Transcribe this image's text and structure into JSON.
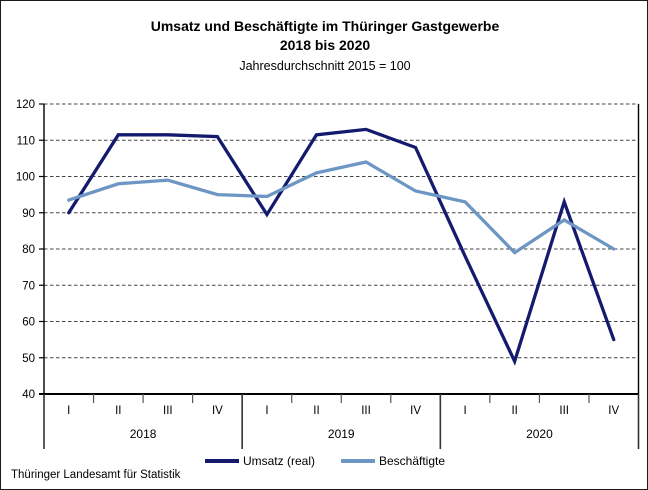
{
  "ui": {
    "title_line1": "Umsatz und Beschäftigte im Thüringer Gastgewerbe",
    "title_line2": "2018 bis 2020",
    "subtitle": "Jahresdurchschnitt 2015 = 100",
    "source": "Thüringer Landesamt für Statistik"
  },
  "chart_data": {
    "type": "line",
    "title": "Umsatz und Beschäftigte im Thüringer Gastgewerbe 2018 bis 2020",
    "subtitle": "Jahresdurchschnitt 2015 = 100",
    "quarter_labels": [
      "I",
      "II",
      "III",
      "IV",
      "I",
      "II",
      "III",
      "IV",
      "I",
      "II",
      "III",
      "IV"
    ],
    "year_labels": [
      "2018",
      "2019",
      "2020"
    ],
    "quarters_per_year": 4,
    "series": [
      {
        "name": "Umsatz (real)",
        "color": "#141b6e",
        "values": [
          90,
          111.5,
          111.5,
          111,
          89.5,
          111.5,
          113,
          108,
          78,
          49,
          93,
          55
        ]
      },
      {
        "name": "Beschäftigte",
        "color": "#6d96c4",
        "values": [
          93.5,
          98,
          99,
          95,
          94.5,
          101,
          104,
          96,
          93,
          79,
          88,
          80
        ]
      }
    ],
    "ylim": [
      40,
      120
    ],
    "ytick_step": 10,
    "grid": "horizontal-dashed",
    "baseline_value": 40,
    "legend_position": "bottom",
    "axis_color": "#000000",
    "grid_color": "#444444",
    "text_color": "#000000"
  }
}
